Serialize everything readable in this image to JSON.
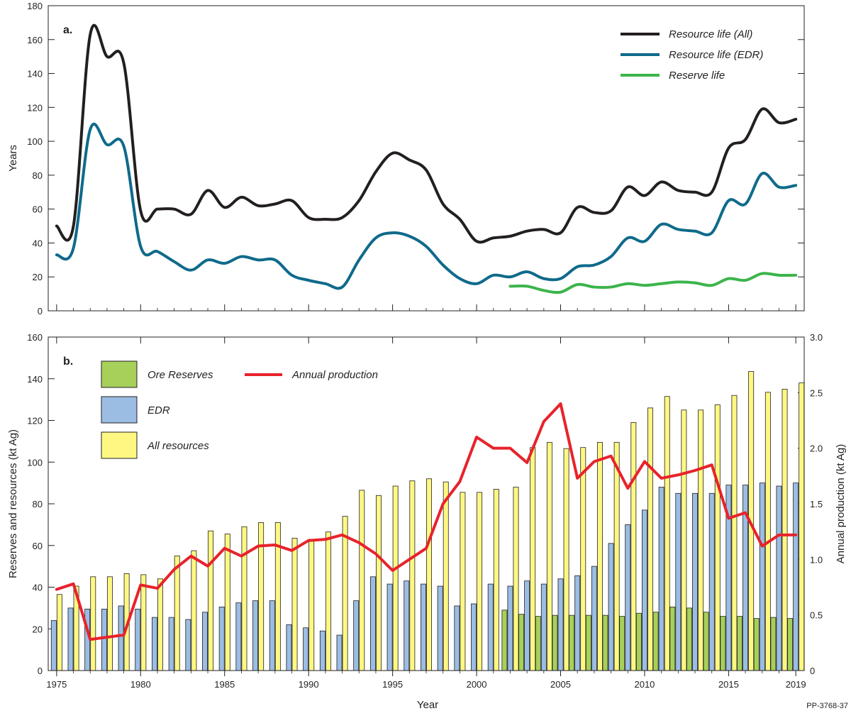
{
  "figure_code": "PP-3768-37",
  "chart_data": [
    {
      "panel": "a.",
      "type": "line",
      "xlabel": "",
      "ylabel": "Years",
      "xlim": [
        1974.5,
        2019.5
      ],
      "ylim": [
        0,
        180
      ],
      "x_ticks": [
        1975,
        1980,
        1985,
        1990,
        1995,
        2000,
        2005,
        2010,
        2015,
        2019
      ],
      "y_ticks": [
        0,
        20,
        40,
        60,
        80,
        100,
        120,
        140,
        160,
        180
      ],
      "legend_position": "top-right",
      "series": [
        {
          "name": "Resource life (All)",
          "color": "#231f20",
          "x": [
            1975,
            1976,
            1977,
            1978,
            1979,
            1980,
            1981,
            1982,
            1983,
            1984,
            1985,
            1986,
            1987,
            1988,
            1989,
            1990,
            1991,
            1992,
            1993,
            1994,
            1995,
            1996,
            1997,
            1998,
            1999,
            2000,
            2001,
            2002,
            2003,
            2004,
            2005,
            2006,
            2007,
            2008,
            2009,
            2010,
            2011,
            2012,
            2013,
            2014,
            2015,
            2016,
            2017,
            2018,
            2019
          ],
          "values": [
            50,
            50,
            163,
            150,
            146,
            59,
            60,
            60,
            57,
            71,
            61,
            67,
            62,
            63,
            65,
            55,
            54,
            55,
            65,
            82,
            93,
            89,
            83,
            63,
            54,
            41,
            43,
            44,
            47,
            48,
            46,
            61,
            58,
            59,
            73,
            68,
            76,
            71,
            70,
            70,
            96,
            101,
            119,
            111,
            113
          ]
        },
        {
          "name": "Resource life (EDR)",
          "color": "#0f6a8b",
          "x": [
            1975,
            1976,
            1977,
            1978,
            1979,
            1980,
            1981,
            1982,
            1983,
            1984,
            1985,
            1986,
            1987,
            1988,
            1989,
            1990,
            1991,
            1992,
            1993,
            1994,
            1995,
            1996,
            1997,
            1998,
            1999,
            2000,
            2001,
            2002,
            2003,
            2004,
            2005,
            2006,
            2007,
            2008,
            2009,
            2010,
            2011,
            2012,
            2013,
            2014,
            2015,
            2016,
            2017,
            2018,
            2019
          ],
          "values": [
            33,
            37,
            107,
            98,
            97,
            38,
            35,
            29,
            24,
            30,
            28,
            32,
            30,
            30,
            21,
            18,
            16,
            14,
            30,
            43,
            46,
            44,
            38,
            27,
            19,
            16,
            21,
            20,
            23,
            19,
            19,
            26,
            27,
            32,
            43,
            41,
            51,
            48,
            47,
            46,
            65,
            63,
            81,
            73,
            74
          ]
        },
        {
          "name": "Reserve life",
          "color": "#3cb44b",
          "x": [
            2002,
            2003,
            2004,
            2005,
            2006,
            2007,
            2008,
            2009,
            2010,
            2011,
            2012,
            2013,
            2014,
            2015,
            2016,
            2017,
            2018,
            2019
          ],
          "values": [
            14.5,
            14.5,
            12,
            11,
            15.5,
            14,
            14,
            16,
            15,
            16,
            17,
            16.5,
            15,
            19,
            18,
            22,
            21,
            21
          ]
        }
      ]
    },
    {
      "panel": "b.",
      "type": "bar",
      "xlabel": "Year",
      "ylabel": "Reserves and resources (kt Ag)",
      "y2label": "Annual production (kt Ag)",
      "xlim": [
        1974.5,
        2019.5
      ],
      "ylim": [
        0,
        160
      ],
      "y2lim": [
        0,
        3.0
      ],
      "x_ticks": [
        1975,
        1980,
        1985,
        1990,
        1995,
        2000,
        2005,
        2010,
        2015,
        2019
      ],
      "y_ticks": [
        0,
        20,
        40,
        60,
        80,
        100,
        120,
        140,
        160
      ],
      "y2_ticks": [
        "0",
        "0.5",
        "1.0",
        "1.5",
        "2.0",
        "2.5",
        "3.0"
      ],
      "legend_position": "top-left",
      "categories": [
        1975,
        1976,
        1977,
        1978,
        1979,
        1980,
        1981,
        1982,
        1983,
        1984,
        1985,
        1986,
        1987,
        1988,
        1989,
        1990,
        1991,
        1992,
        1993,
        1994,
        1995,
        1996,
        1997,
        1998,
        1999,
        2000,
        2001,
        2002,
        2003,
        2004,
        2005,
        2006,
        2007,
        2008,
        2009,
        2010,
        2011,
        2012,
        2013,
        2014,
        2015,
        2016,
        2017,
        2018,
        2019
      ],
      "series": [
        {
          "name": "Ore Reserves",
          "color": "#a6d05a",
          "values": [
            null,
            null,
            null,
            null,
            null,
            null,
            null,
            null,
            null,
            null,
            null,
            null,
            null,
            null,
            null,
            null,
            null,
            null,
            null,
            null,
            null,
            null,
            null,
            null,
            null,
            null,
            null,
            29,
            27,
            26,
            26.5,
            26.5,
            26.5,
            26.5,
            26,
            27.5,
            28,
            30.5,
            30,
            28,
            26,
            26,
            25,
            25.5,
            25
          ]
        },
        {
          "name": "EDR",
          "color": "#9bbde4",
          "values": [
            24,
            30,
            29.5,
            29.5,
            31,
            29.5,
            25.5,
            25.5,
            24.5,
            28,
            30.5,
            32.5,
            33.5,
            33.5,
            22,
            20.5,
            19,
            17,
            33.5,
            45,
            41.5,
            43,
            41.5,
            40.5,
            31,
            32,
            41.5,
            40.5,
            43,
            41.5,
            44,
            45.5,
            50,
            61,
            70,
            77,
            88,
            85,
            85,
            85,
            89,
            89,
            90,
            88.5,
            90
          ]
        },
        {
          "name": "All resources",
          "color": "#fef883",
          "values": [
            36.5,
            40.5,
            45,
            45,
            46.5,
            46,
            44,
            55,
            57.5,
            67,
            65.5,
            69,
            71,
            71,
            63.5,
            63,
            66.5,
            74,
            86.5,
            84,
            88.5,
            91,
            92,
            90.5,
            85.5,
            85.5,
            87,
            88,
            107,
            109.5,
            106.5,
            107,
            109.5,
            109.5,
            119,
            126,
            131.5,
            125,
            125,
            127.5,
            132,
            143.5,
            133.5,
            135,
            138
          ]
        }
      ],
      "line_series": {
        "name": "Annual production",
        "color": "#e8222b",
        "axis": "right",
        "x": [
          1975,
          1976,
          1977,
          1978,
          1979,
          1980,
          1981,
          1982,
          1983,
          1984,
          1985,
          1986,
          1987,
          1988,
          1989,
          1990,
          1991,
          1992,
          1993,
          1994,
          1995,
          1996,
          1997,
          1998,
          1999,
          2000,
          2001,
          2002,
          2003,
          2004,
          2005,
          2006,
          2007,
          2008,
          2009,
          2010,
          2011,
          2012,
          2013,
          2014,
          2015,
          2016,
          2017,
          2018,
          2019
        ],
        "values": [
          0.73,
          0.78,
          0.28,
          0.3,
          0.32,
          0.77,
          0.74,
          0.91,
          1.03,
          0.94,
          1.1,
          1.03,
          1.12,
          1.13,
          1.08,
          1.17,
          1.18,
          1.22,
          1.15,
          1.05,
          0.9,
          1.0,
          1.1,
          1.5,
          1.7,
          2.1,
          2.0,
          2.0,
          1.87,
          2.24,
          2.4,
          1.73,
          1.88,
          1.93,
          1.64,
          1.88,
          1.73,
          1.76,
          1.8,
          1.85,
          1.37,
          1.42,
          1.12,
          1.22,
          1.22
        ]
      }
    }
  ]
}
